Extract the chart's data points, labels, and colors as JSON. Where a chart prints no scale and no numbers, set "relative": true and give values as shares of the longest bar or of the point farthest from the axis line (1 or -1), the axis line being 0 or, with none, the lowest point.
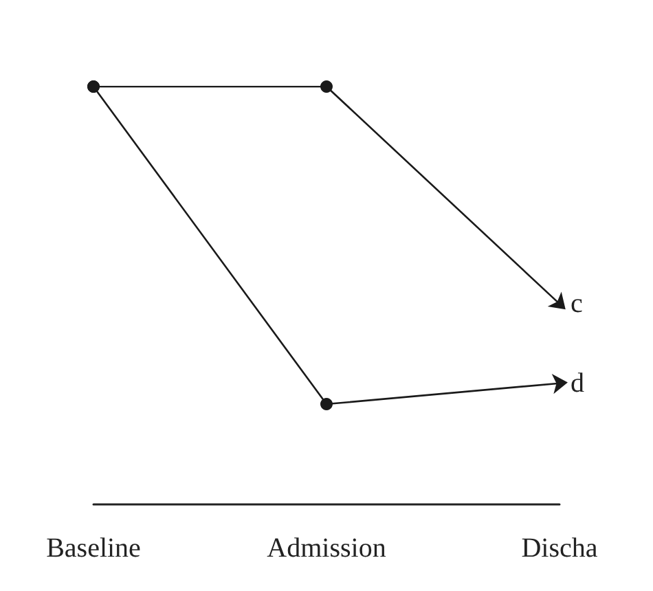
{
  "chart_data": {
    "type": "line",
    "relative": true,
    "categories": [
      "Baseline",
      "Admission",
      "Discha"
    ],
    "series": [
      {
        "color": "#1a1a1a",
        "values": [
          1,
          1,
          0.48
        ]
      },
      {
        "color": "#1a1a1a",
        "values": [
          1,
          0.24,
          0.29
        ]
      }
    ],
    "annotations": [
      {
        "text": "c",
        "x": "Discha",
        "y": 0.48
      },
      {
        "text": "d",
        "x": "Discha",
        "y": 0.29
      }
    ],
    "marker": "circle",
    "line_style": "solid",
    "grid": false
  }
}
